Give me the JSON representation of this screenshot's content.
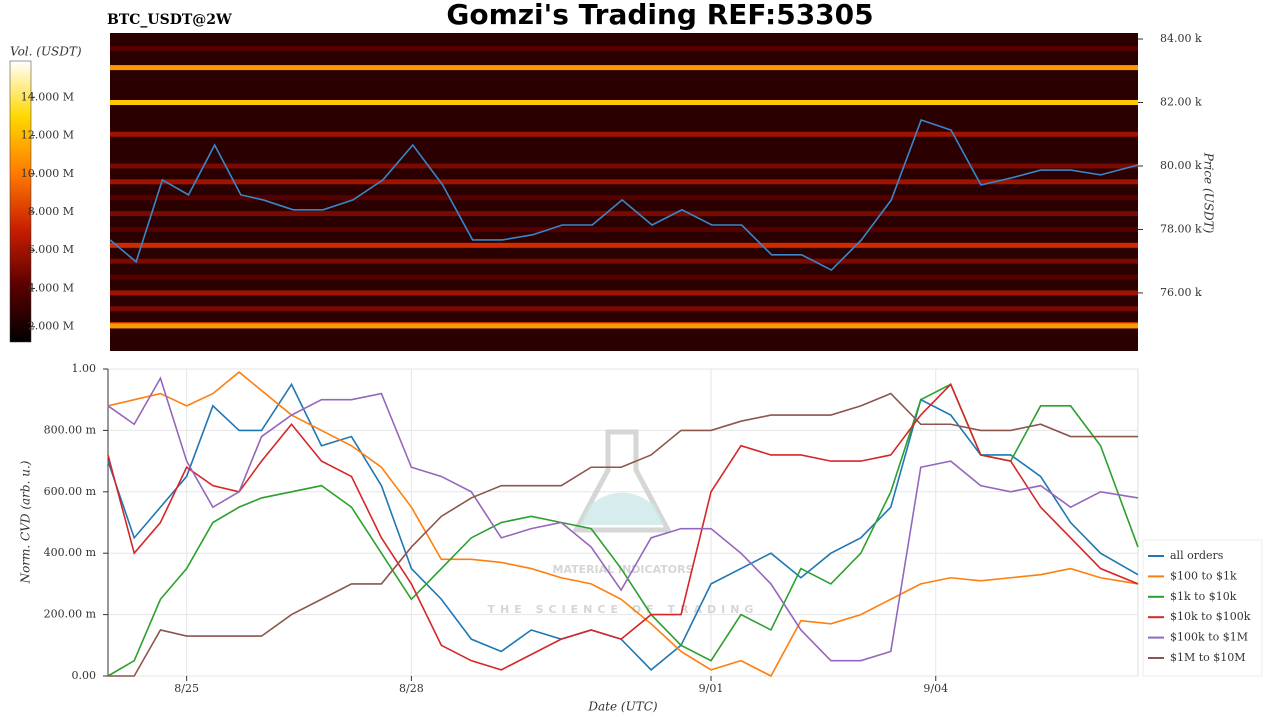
{
  "chart_data": [
    {
      "type": "heatmap",
      "title": "Gomzi's Trading REF:53305",
      "subtitle": "BTC_USDT@2W",
      "y_label": "Price (USDT)",
      "colorbar_label": "Vol. (USDT)",
      "xlim": [
        -1.05,
        12.7
      ],
      "ylim": [
        74170,
        84190
      ],
      "yticks": [
        {
          "value": 76000,
          "label": "76.00 k"
        },
        {
          "value": 78000,
          "label": "78.00 k"
        },
        {
          "value": 80000,
          "label": "80.00 k"
        },
        {
          "value": 82000,
          "label": "82.00 k"
        },
        {
          "value": 84000,
          "label": "84.00 k"
        }
      ],
      "zlim": [
        1200000,
        15900000
      ],
      "zticks": [
        {
          "value": 2000000,
          "label": "2.000 M"
        },
        {
          "value": 4000000,
          "label": "4.000 M"
        },
        {
          "value": 6000000,
          "label": "6.000 M"
        },
        {
          "value": 8000000,
          "label": "8.000 M"
        },
        {
          "value": 10000000,
          "label": "10.000 M"
        },
        {
          "value": 12000000,
          "label": "12.000 M"
        },
        {
          "value": 14000000,
          "label": "14.000 M"
        }
      ],
      "colorscale": [
        "#000000",
        "#5a0000",
        "#c81e00",
        "#ff7a00",
        "#ffd700",
        "#ffffff"
      ],
      "levels": [
        83700,
        83100,
        82000,
        81000,
        80000,
        79500,
        79000,
        78500,
        78000,
        77500,
        77000,
        76500,
        76000,
        75500,
        75000,
        74960
      ],
      "volumes": [
        4000000,
        11000000,
        12500000,
        6000000,
        5000000,
        6000000,
        4000000,
        5000000,
        4000000,
        7500000,
        5000000,
        4000000,
        6000000,
        5000000,
        8000000,
        11000000
      ],
      "price_color": "#3a86c8",
      "x": [
        -1.05,
        -0.7,
        -0.35,
        0,
        0.35,
        0.7,
        1.0,
        1.4,
        1.8,
        2.2,
        2.6,
        3.0,
        3.4,
        3.8,
        4.2,
        4.6,
        5.0,
        5.4,
        5.8,
        6.2,
        6.6,
        7.0,
        7.4,
        7.8,
        8.2,
        8.6,
        9.0,
        9.4,
        9.8,
        10.2,
        10.6,
        11.0,
        11.4,
        11.8,
        12.2,
        12.7
      ],
      "price": [
        77670,
        76980,
        79560,
        79090,
        80660,
        79090,
        78930,
        78620,
        78620,
        78930,
        79560,
        80660,
        79400,
        77670,
        77670,
        77830,
        78140,
        78140,
        78930,
        78140,
        78620,
        78140,
        78140,
        77200,
        77200,
        76720,
        77670,
        78930,
        81450,
        81130,
        79400,
        79620,
        79870,
        79870,
        79720,
        80030
      ]
    },
    {
      "type": "line",
      "x_label": "Date (UTC)",
      "y_label": "Norm. CVD (arb. u.)",
      "watermark": [
        "MATERIAL INDICATORS",
        "THE SCIENCE OF TRADING"
      ],
      "xlim": [
        -1.05,
        12.7
      ],
      "xticks": [
        {
          "value": 0,
          "label": "8/25"
        },
        {
          "value": 3,
          "label": "8/28"
        },
        {
          "value": 7,
          "label": "9/01"
        },
        {
          "value": 10,
          "label": "9/04"
        }
      ],
      "ylim": [
        0,
        1
      ],
      "yticks": [
        {
          "value": 0,
          "label": "0.00"
        },
        {
          "value": 0.2,
          "label": "200.00 m"
        },
        {
          "value": 0.4,
          "label": "400.00 m"
        },
        {
          "value": 0.6,
          "label": "600.00 m"
        },
        {
          "value": 0.8,
          "label": "800.00 m"
        },
        {
          "value": 1,
          "label": "1.00"
        }
      ],
      "grid": true,
      "legend": "right",
      "x": [
        -1.05,
        -0.7,
        -0.35,
        0,
        0.35,
        0.7,
        1.0,
        1.4,
        1.8,
        2.2,
        2.6,
        3.0,
        3.4,
        3.8,
        4.2,
        4.6,
        5.0,
        5.4,
        5.8,
        6.2,
        6.6,
        7.0,
        7.4,
        7.8,
        8.2,
        8.6,
        9.0,
        9.4,
        9.8,
        10.2,
        10.6,
        11.0,
        11.4,
        11.8,
        12.2,
        12.7
      ],
      "series": [
        {
          "name": "all orders",
          "color": "#1f77b4",
          "values": [
            0.7,
            0.45,
            0.55,
            0.65,
            0.88,
            0.8,
            0.8,
            0.95,
            0.75,
            0.78,
            0.62,
            0.35,
            0.25,
            0.12,
            0.08,
            0.15,
            0.12,
            0.15,
            0.12,
            0.02,
            0.1,
            0.3,
            0.35,
            0.4,
            0.32,
            0.4,
            0.45,
            0.55,
            0.9,
            0.85,
            0.72,
            0.72,
            0.65,
            0.5,
            0.4,
            0.33
          ]
        },
        {
          "name": "$100 to $1k",
          "color": "#ff7f0e",
          "values": [
            0.88,
            0.9,
            0.92,
            0.88,
            0.92,
            0.99,
            0.93,
            0.85,
            0.8,
            0.75,
            0.68,
            0.55,
            0.38,
            0.38,
            0.37,
            0.35,
            0.32,
            0.3,
            0.25,
            0.17,
            0.08,
            0.02,
            0.05,
            0.0,
            0.18,
            0.17,
            0.2,
            0.25,
            0.3,
            0.32,
            0.31,
            0.32,
            0.33,
            0.35,
            0.32,
            0.3
          ]
        },
        {
          "name": "$1k to $10k",
          "color": "#2ca02c",
          "values": [
            0.0,
            0.05,
            0.25,
            0.35,
            0.5,
            0.55,
            0.58,
            0.6,
            0.62,
            0.55,
            0.4,
            0.25,
            0.35,
            0.45,
            0.5,
            0.52,
            0.5,
            0.48,
            0.35,
            0.2,
            0.1,
            0.05,
            0.2,
            0.15,
            0.35,
            0.3,
            0.4,
            0.6,
            0.9,
            0.95,
            0.72,
            0.7,
            0.88,
            0.88,
            0.75,
            0.42
          ]
        },
        {
          "name": "$10k to $100k",
          "color": "#d62728",
          "values": [
            0.72,
            0.4,
            0.5,
            0.68,
            0.62,
            0.6,
            0.7,
            0.82,
            0.7,
            0.65,
            0.45,
            0.3,
            0.1,
            0.05,
            0.02,
            0.07,
            0.12,
            0.15,
            0.12,
            0.2,
            0.2,
            0.6,
            0.75,
            0.72,
            0.72,
            0.7,
            0.7,
            0.72,
            0.85,
            0.95,
            0.72,
            0.7,
            0.55,
            0.45,
            0.35,
            0.3
          ]
        },
        {
          "name": "$100k to $1M",
          "color": "#9467bd",
          "values": [
            0.88,
            0.82,
            0.97,
            0.7,
            0.55,
            0.6,
            0.78,
            0.85,
            0.9,
            0.9,
            0.92,
            0.68,
            0.65,
            0.6,
            0.45,
            0.48,
            0.5,
            0.42,
            0.28,
            0.45,
            0.48,
            0.48,
            0.4,
            0.3,
            0.15,
            0.05,
            0.05,
            0.08,
            0.68,
            0.7,
            0.62,
            0.6,
            0.62,
            0.55,
            0.6,
            0.58
          ]
        },
        {
          "name": "$1M to $10M",
          "color": "#8c564b",
          "values": [
            0.0,
            0.0,
            0.15,
            0.13,
            0.13,
            0.13,
            0.13,
            0.2,
            0.25,
            0.3,
            0.3,
            0.42,
            0.52,
            0.58,
            0.62,
            0.62,
            0.62,
            0.68,
            0.68,
            0.72,
            0.8,
            0.8,
            0.83,
            0.85,
            0.85,
            0.85,
            0.88,
            0.92,
            0.82,
            0.82,
            0.8,
            0.8,
            0.82,
            0.78,
            0.78,
            0.78
          ]
        }
      ]
    }
  ]
}
